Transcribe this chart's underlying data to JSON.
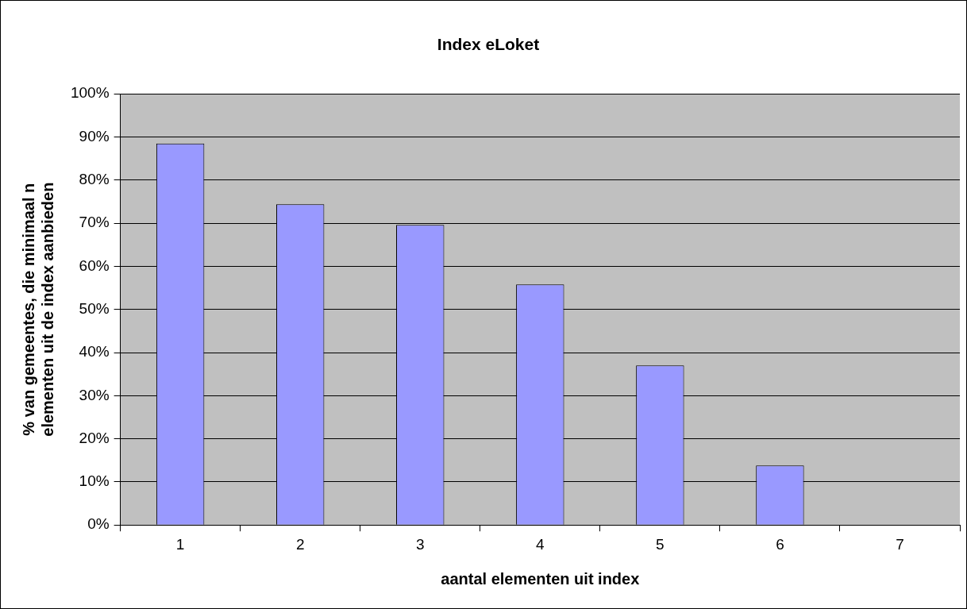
{
  "chart_data": {
    "type": "bar",
    "title": "Index eLoket",
    "xlabel": "aantal elementen uit index",
    "ylabel": "% van gemeentes, die minimaal n elementen uit de index aanbieden",
    "categories": [
      "1",
      "2",
      "3",
      "4",
      "5",
      "6",
      "7"
    ],
    "values": [
      88.5,
      74.4,
      69.6,
      55.8,
      37.0,
      13.8,
      0
    ],
    "color": "#9999ff",
    "ylim": [
      0,
      100
    ],
    "yticks": [
      {
        "value": 0,
        "label": "0%"
      },
      {
        "value": 10,
        "label": "10%"
      },
      {
        "value": 20,
        "label": "20%"
      },
      {
        "value": 30,
        "label": "30%"
      },
      {
        "value": 40,
        "label": "40%"
      },
      {
        "value": 50,
        "label": "50%"
      },
      {
        "value": 60,
        "label": "60%"
      },
      {
        "value": 70,
        "label": "70%"
      },
      {
        "value": 80,
        "label": "80%"
      },
      {
        "value": 90,
        "label": "90%"
      },
      {
        "value": 100,
        "label": "100%"
      }
    ],
    "grid": "y",
    "legend": false
  }
}
